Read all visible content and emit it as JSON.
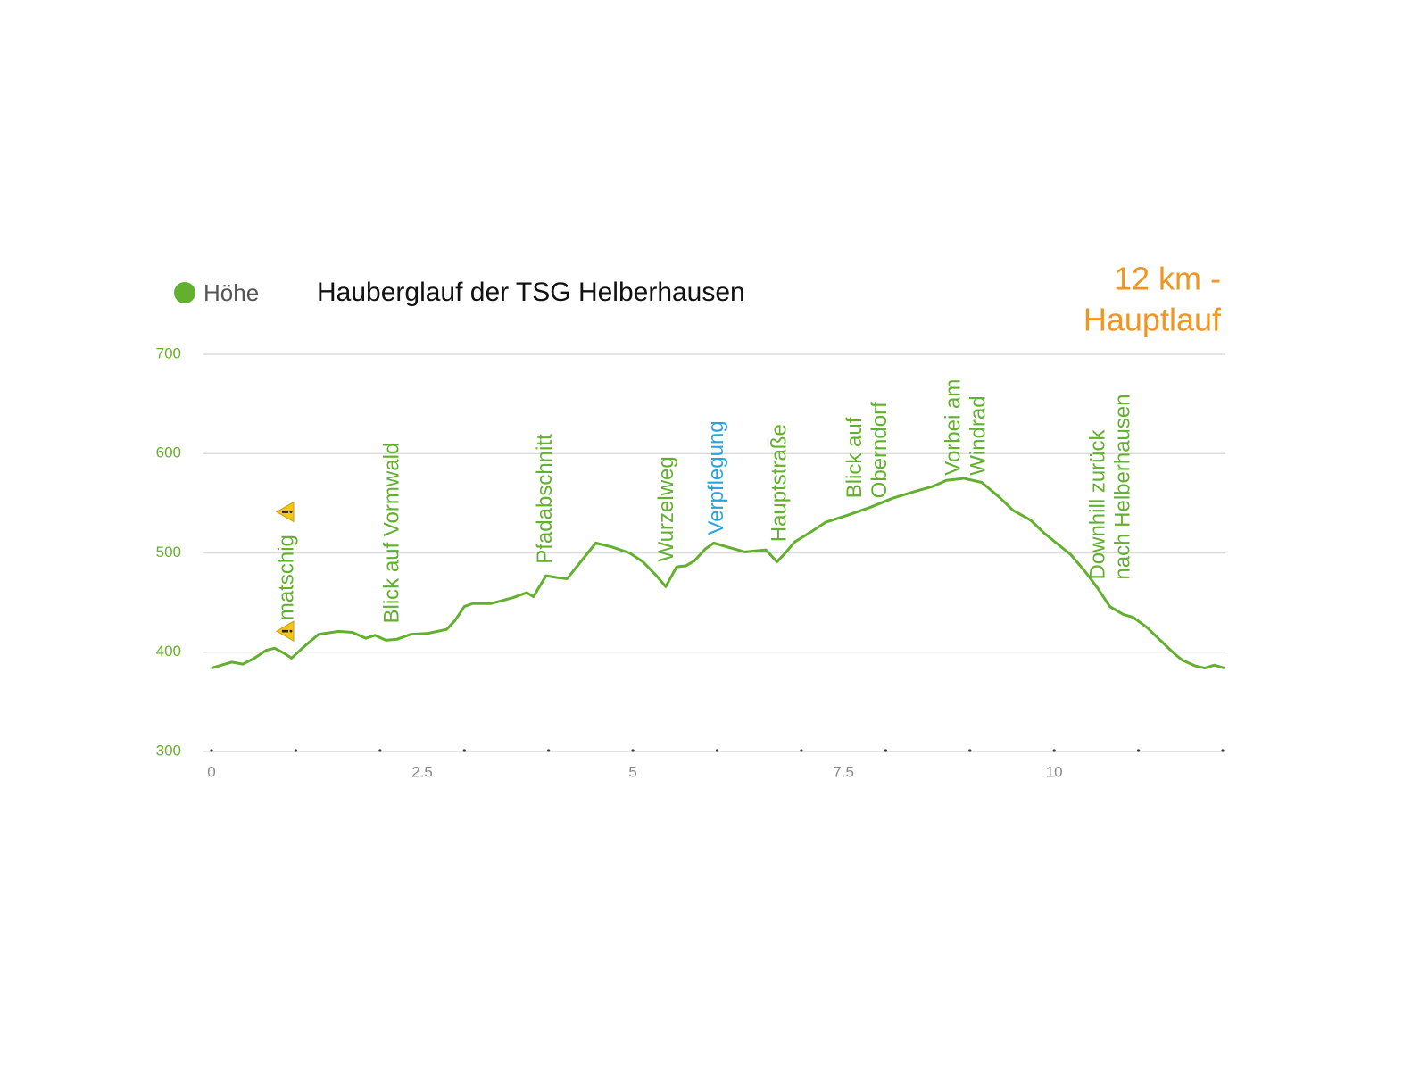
{
  "chart_data": {
    "type": "line",
    "title": "Hauberglauf der TSG Helberhausen",
    "subtitle_lines": [
      "12 km -",
      "Hauptlauf"
    ],
    "subtitle_color": "#f0961e",
    "xlim": [
      0,
      12
    ],
    "ylim": [
      300,
      700
    ],
    "xticks": [
      0,
      2.5,
      5,
      7.5,
      10
    ],
    "xminor": [
      0,
      1,
      2,
      3,
      4,
      5,
      6,
      7,
      8,
      9,
      10,
      11,
      12
    ],
    "yticks": [
      300,
      400,
      500,
      600,
      700
    ],
    "grid": true,
    "legend": "top-left",
    "series": [
      {
        "name": "Höhe",
        "color": "#62b02e",
        "x": [
          0,
          0.12,
          0.24,
          0.37,
          0.51,
          0.65,
          0.75,
          0.86,
          0.95,
          1.09,
          1.27,
          1.51,
          1.67,
          1.83,
          1.94,
          2.07,
          2.2,
          2.36,
          2.57,
          2.79,
          2.89,
          3.0,
          3.1,
          3.32,
          3.58,
          3.74,
          3.82,
          3.97,
          4.11,
          4.22,
          4.38,
          4.56,
          4.75,
          4.96,
          5.12,
          5.28,
          5.39,
          5.52,
          5.63,
          5.73,
          5.86,
          5.96,
          6.12,
          6.33,
          6.58,
          6.71,
          6.81,
          6.92,
          7.13,
          7.29,
          7.55,
          7.82,
          8.08,
          8.35,
          8.56,
          8.72,
          8.93,
          9.14,
          9.35,
          9.51,
          9.72,
          9.88,
          10.04,
          10.2,
          10.36,
          10.52,
          10.66,
          10.82,
          10.94,
          11.1,
          11.26,
          11.42,
          11.52,
          11.68,
          11.79,
          11.9,
          12.02
        ],
        "values": [
          384,
          387,
          390,
          388,
          394,
          402,
          404,
          399,
          394,
          405,
          418,
          421,
          420,
          414,
          417,
          412,
          413,
          418,
          419,
          423,
          432,
          446,
          449,
          449,
          455,
          460,
          456,
          477,
          475,
          474,
          491,
          510,
          506,
          500,
          491,
          477,
          466,
          486,
          487,
          492,
          504,
          510,
          506,
          501,
          503,
          491,
          500,
          511,
          522,
          531,
          538,
          546,
          555,
          562,
          567,
          573,
          575,
          571,
          556,
          543,
          533,
          520,
          509,
          498,
          482,
          464,
          446,
          438,
          435,
          425,
          412,
          399,
          392,
          386,
          384,
          387,
          384
        ]
      }
    ],
    "annotations": [
      {
        "lines": [
          "matschig"
        ],
        "x": 0.9,
        "y": 432,
        "color": "#62b02e",
        "warning": true
      },
      {
        "lines": [
          "Blick auf Vormwald"
        ],
        "x": 2.15,
        "y": 429,
        "color": "#62b02e"
      },
      {
        "lines": [
          "Pfadabschnitt"
        ],
        "x": 3.97,
        "y": 489,
        "color": "#62b02e"
      },
      {
        "lines": [
          "Wurzelweg"
        ],
        "x": 5.41,
        "y": 491,
        "color": "#62b02e"
      },
      {
        "lines": [
          "Verpflegung"
        ],
        "x": 6.0,
        "y": 518,
        "color": "#2aa3dd"
      },
      {
        "lines": [
          "Hauptstraße"
        ],
        "x": 6.75,
        "y": 511,
        "color": "#62b02e"
      },
      {
        "lines": [
          "Blick auf",
          "Oberndorf"
        ],
        "x": 7.79,
        "y": 555,
        "color": "#62b02e"
      },
      {
        "lines": [
          "Vorbei am",
          "Windrad"
        ],
        "x": 8.96,
        "y": 578,
        "color": "#62b02e"
      },
      {
        "lines": [
          "Downhill zurück",
          "nach Helberhausen"
        ],
        "x": 10.68,
        "y": 473,
        "color": "#62b02e"
      }
    ]
  }
}
